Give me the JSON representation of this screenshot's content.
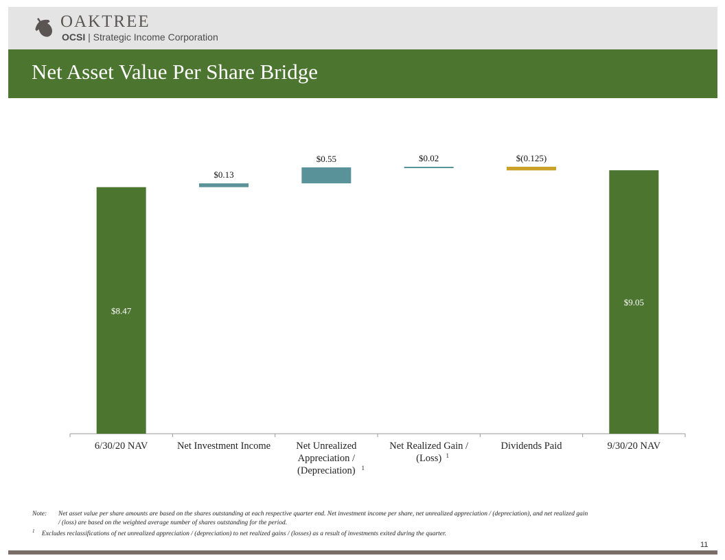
{
  "header": {
    "brand": "OAKTREE",
    "ticker": "OCSI",
    "company": " | Strategic Income Corporation"
  },
  "title": "Net Asset Value Per Share Bridge",
  "chart_data": {
    "type": "bar",
    "subtype": "waterfall",
    "title": "Net Asset Value Per Share Bridge",
    "categories": [
      "6/30/20 NAV",
      "Net Investment Income",
      "Net Unrealized Appreciation / (Depreciation)",
      "Net Realized Gain / (Loss)",
      "Dividends Paid",
      "9/30/20 NAV"
    ],
    "category_lines": [
      [
        "6/30/20 NAV"
      ],
      [
        "Net Investment Income"
      ],
      [
        "Net Unrealized",
        "Appreciation /",
        "(Depreciation)"
      ],
      [
        "Net Realized Gain /",
        "(Loss)"
      ],
      [
        "Dividends Paid"
      ],
      [
        "9/30/20 NAV"
      ]
    ],
    "footnote_marks": [
      "",
      "",
      "1",
      "1",
      "",
      ""
    ],
    "values": [
      8.47,
      0.13,
      0.55,
      0.02,
      -0.125,
      9.05
    ],
    "kinds": [
      "total",
      "delta",
      "delta",
      "delta",
      "delta",
      "total"
    ],
    "labels": [
      "$8.47",
      "$0.13",
      "$0.55",
      "$0.02",
      "$(0.125)",
      "$9.05"
    ],
    "colors": [
      "#4c7530",
      "#5a9299",
      "#5a9299",
      "#5a9299",
      "#c9a227",
      "#4c7530"
    ],
    "ylim": [
      0,
      9.5
    ],
    "xlabel": "",
    "ylabel": "",
    "grid": false,
    "legend": "none"
  },
  "notes": {
    "note_label": "Note:",
    "note_line1": "Net asset value per share amounts are based on the shares outstanding at each respective quarter end. Net investment income per share, net unrealized appreciation / (depreciation), and net realized gain",
    "note_line2": "/ (loss) are based on the weighted average number of shares outstanding for the period.",
    "footnote_mark": "1",
    "footnote_text": "Excludes reclassifications of net unrealized appreciation / (depreciation) to net realized gains / (losses) as a result of investments exited during the quarter."
  },
  "page_number": "11"
}
